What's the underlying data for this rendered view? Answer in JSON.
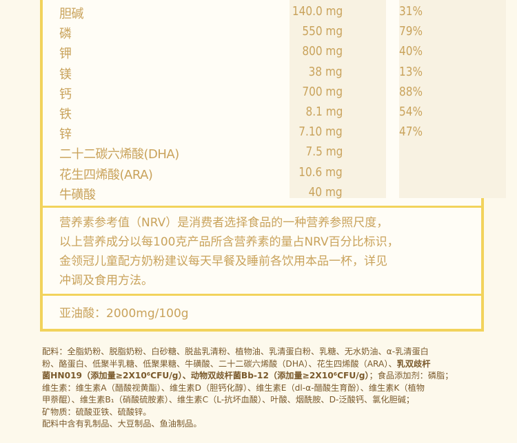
{
  "colors": {
    "border": "#f2d35c",
    "text_gold": "#c9a35c",
    "text_brown": "#7a5a2c",
    "background": "#fdf9ec"
  },
  "nutrients": [
    {
      "name": "胆碱",
      "value": "140.0 mg",
      "nrv": "31%"
    },
    {
      "name": "磷",
      "value": "550 mg",
      "nrv": "79%"
    },
    {
      "name": "钾",
      "value": "800 mg",
      "nrv": "40%"
    },
    {
      "name": "镁",
      "value": "38 mg",
      "nrv": "13%"
    },
    {
      "name": "钙",
      "value": "700 mg",
      "nrv": "88%"
    },
    {
      "name": "铁",
      "value": "8.1 mg",
      "nrv": "54%"
    },
    {
      "name": "锌",
      "value": "7.10 mg",
      "nrv": "47%"
    },
    {
      "name": "二十二碳六烯酸(DHA)",
      "value": "7.5 mg",
      "nrv": ""
    },
    {
      "name": "花生四烯酸(ARA)",
      "value": "10.6 mg",
      "nrv": ""
    },
    {
      "name": "牛磺酸",
      "value": "40 mg",
      "nrv": ""
    }
  ],
  "note_lines": [
    "营养素参考值（NRV）是消费者选择食品的一种营养参照尺度，",
    "以上营养成分以每100克产品所含营养素的量占NRV百分比标识，",
    "金领冠儿童配方奶粉建议每天早餐及睡前各饮用本品一杯，详见",
    "冲调及食用方法。"
  ],
  "linoleic": "亚油酸：2000mg/100g",
  "ingredients": {
    "line1": "配料：全脂奶粉、脱脂奶粉、白砂糖、脱盐乳清粉、植物油、乳清蛋白粉、乳糖、无水奶油、α-乳清蛋白",
    "line2a": "粉、酪蛋白、低聚半乳糖、低聚果糖、牛磺酸、二十二碳六烯酸（DHA）、花生四烯酸（ARA）、",
    "line2b": "乳双歧杆",
    "line3a": "菌HN019（添加量≥2X10⁶CFU/g）、动物双歧杆菌Bb-12（添加量≥2X10⁶CFU/g）",
    "line3b": "；食品添加剂：磷脂；",
    "line4": "维生素：维生素A（醋酸视黄酯）、维生素D（胆钙化醇）、维生素E（dl-α-醋酸生育酚）、维生素K（植物",
    "line5": "甲萘醌）、维生素B₁（硝酸硫胺素）、维生素C（L-抗坏血酸）、叶酸、烟酰胺、D-泛酸钙、氯化胆碱；",
    "line6": "矿物质：硫酸亚铁、硫酸锌。",
    "line7": "配料中含有乳制品、大豆制品、鱼油制品。"
  }
}
